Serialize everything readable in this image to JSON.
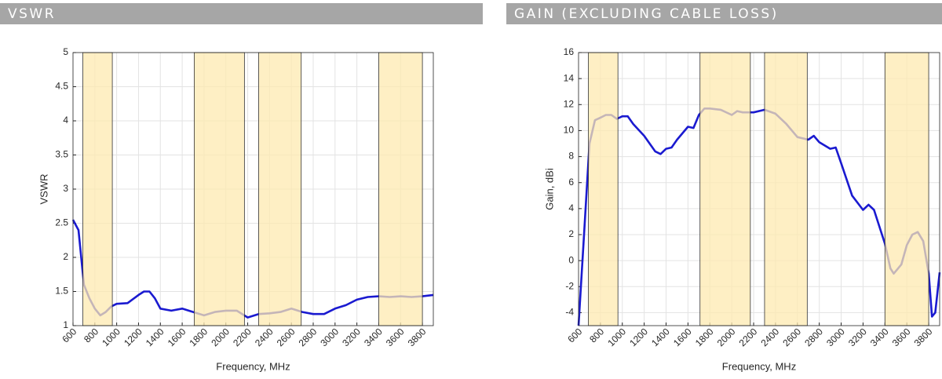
{
  "chart_data": [
    {
      "type": "line",
      "title": "VSWR",
      "xlabel": "Frequency, MHz",
      "ylabel": "VSWR",
      "color": "#1a1ad0",
      "band_color": "#fde9b0",
      "grid": true,
      "xlim": [
        600,
        3900
      ],
      "ylim": [
        1,
        5
      ],
      "xticks": [
        600,
        800,
        1000,
        1200,
        1400,
        1600,
        1800,
        2000,
        2200,
        2400,
        2600,
        2800,
        3000,
        3200,
        3400,
        3600,
        3800
      ],
      "yticks": [
        1,
        1.5,
        2,
        2.5,
        3,
        3.5,
        4,
        4.5,
        5
      ],
      "bands": [
        [
          690,
          960
        ],
        [
          1710,
          2170
        ],
        [
          2300,
          2690
        ],
        [
          3400,
          3800
        ]
      ],
      "x": [
        600,
        650,
        700,
        750,
        800,
        850,
        900,
        950,
        1000,
        1100,
        1200,
        1250,
        1300,
        1350,
        1400,
        1500,
        1600,
        1700,
        1800,
        1900,
        2000,
        2100,
        2200,
        2300,
        2400,
        2500,
        2600,
        2700,
        2800,
        2900,
        3000,
        3100,
        3200,
        3300,
        3400,
        3500,
        3600,
        3700,
        3800,
        3900
      ],
      "values": [
        2.55,
        2.4,
        1.6,
        1.4,
        1.25,
        1.15,
        1.2,
        1.28,
        1.32,
        1.33,
        1.45,
        1.5,
        1.5,
        1.4,
        1.25,
        1.22,
        1.25,
        1.2,
        1.15,
        1.2,
        1.22,
        1.22,
        1.12,
        1.17,
        1.18,
        1.2,
        1.25,
        1.2,
        1.17,
        1.17,
        1.25,
        1.3,
        1.38,
        1.42,
        1.43,
        1.42,
        1.43,
        1.42,
        1.43,
        1.45
      ]
    },
    {
      "type": "line",
      "title": "GAIN (EXCLUDING CABLE LOSS)",
      "xlabel": "Frequency, MHz",
      "ylabel": "Gain, dBi",
      "color": "#1a1ad0",
      "band_color": "#fde9b0",
      "grid": true,
      "xlim": [
        600,
        3900
      ],
      "ylim": [
        -5,
        16
      ],
      "xticks": [
        600,
        800,
        1000,
        1200,
        1400,
        1600,
        1800,
        2000,
        2200,
        2400,
        2600,
        2800,
        3000,
        3200,
        3400,
        3600,
        3800
      ],
      "yticks": [
        -4,
        -2,
        0,
        2,
        4,
        6,
        8,
        10,
        12,
        14,
        16
      ],
      "bands": [
        [
          690,
          960
        ],
        [
          1710,
          2170
        ],
        [
          2300,
          2690
        ],
        [
          3400,
          3800
        ]
      ],
      "x": [
        600,
        650,
        700,
        750,
        800,
        850,
        900,
        950,
        1000,
        1050,
        1100,
        1200,
        1300,
        1350,
        1400,
        1450,
        1500,
        1600,
        1650,
        1700,
        1750,
        1800,
        1900,
        2000,
        2050,
        2100,
        2200,
        2300,
        2400,
        2500,
        2600,
        2700,
        2750,
        2800,
        2900,
        2950,
        3000,
        3100,
        3200,
        3250,
        3300,
        3400,
        3450,
        3480,
        3550,
        3600,
        3650,
        3700,
        3750,
        3800,
        3830,
        3860,
        3900
      ],
      "values": [
        -5,
        2,
        9,
        10.8,
        11,
        11.2,
        11.2,
        10.9,
        11.1,
        11.1,
        10.5,
        9.6,
        8.4,
        8.2,
        8.6,
        8.7,
        9.3,
        10.3,
        10.2,
        11.2,
        11.7,
        11.7,
        11.6,
        11.2,
        11.5,
        11.4,
        11.4,
        11.6,
        11.3,
        10.5,
        9.5,
        9.3,
        9.6,
        9.1,
        8.6,
        8.7,
        7.5,
        5,
        3.9,
        4.3,
        3.9,
        1.3,
        -0.6,
        -1,
        -0.3,
        1.2,
        2,
        2.2,
        1.5,
        -1,
        -4.3,
        -4,
        -0.9
      ]
    }
  ]
}
